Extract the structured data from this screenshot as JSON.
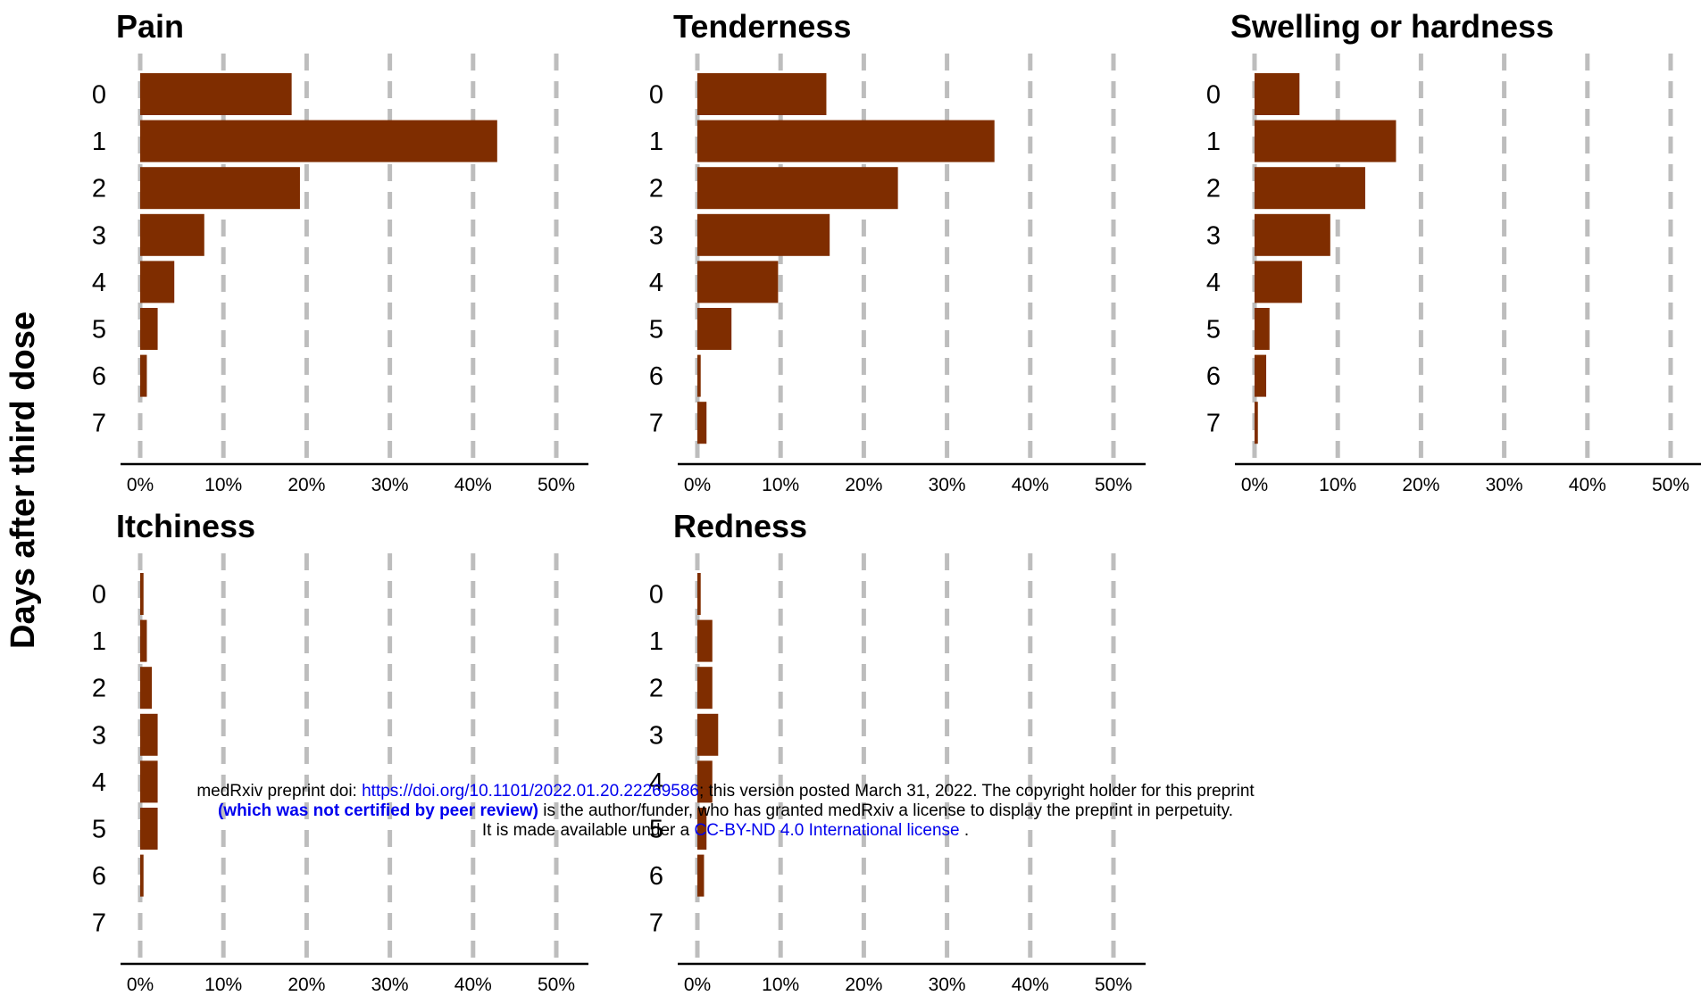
{
  "chart_data": {
    "type": "bar",
    "orientation": "horizontal",
    "ylabel": "Days after third dose",
    "categories": [
      "0",
      "1",
      "2",
      "3",
      "4",
      "5",
      "6",
      "7"
    ],
    "xlim": [
      0,
      0.5
    ],
    "xticks": [
      "0%",
      "10%",
      "20%",
      "30%",
      "40%",
      "50%"
    ],
    "grid": "vertical dashed",
    "panels": [
      {
        "title": "Pain",
        "values": [
          0.182,
          0.429,
          0.192,
          0.077,
          0.041,
          0.021,
          0.008,
          0.0
        ]
      },
      {
        "title": "Tenderness",
        "values": [
          0.155,
          0.357,
          0.241,
          0.159,
          0.097,
          0.041,
          0.004,
          0.011
        ]
      },
      {
        "title": "Swelling or hardness",
        "values": [
          0.054,
          0.17,
          0.133,
          0.091,
          0.057,
          0.018,
          0.014,
          0.004
        ]
      },
      {
        "title": "Itchiness",
        "values": [
          0.004,
          0.008,
          0.014,
          0.021,
          0.021,
          0.021,
          0.004,
          0.0
        ]
      },
      {
        "title": "Redness",
        "values": [
          0.004,
          0.018,
          0.018,
          0.025,
          0.018,
          0.011,
          0.008,
          0.0
        ]
      }
    ]
  },
  "watermark": {
    "line1_prefix": "medRxiv preprint doi: ",
    "line1_doi": "https://doi.org/10.1101/2022.01.20.22269586",
    "line1_suffix": "; this version posted March 31, 2022. The copyright holder for this preprint",
    "line2_bold": "(which was not certified by peer review)",
    "line2_suffix": " is the author/funder, who has granted medRxiv a license to display the preprint in perpetuity.",
    "line3_prefix": "It is made available under a ",
    "line3_license": "CC-BY-ND 4.0 International license",
    "line3_suffix": " ."
  }
}
